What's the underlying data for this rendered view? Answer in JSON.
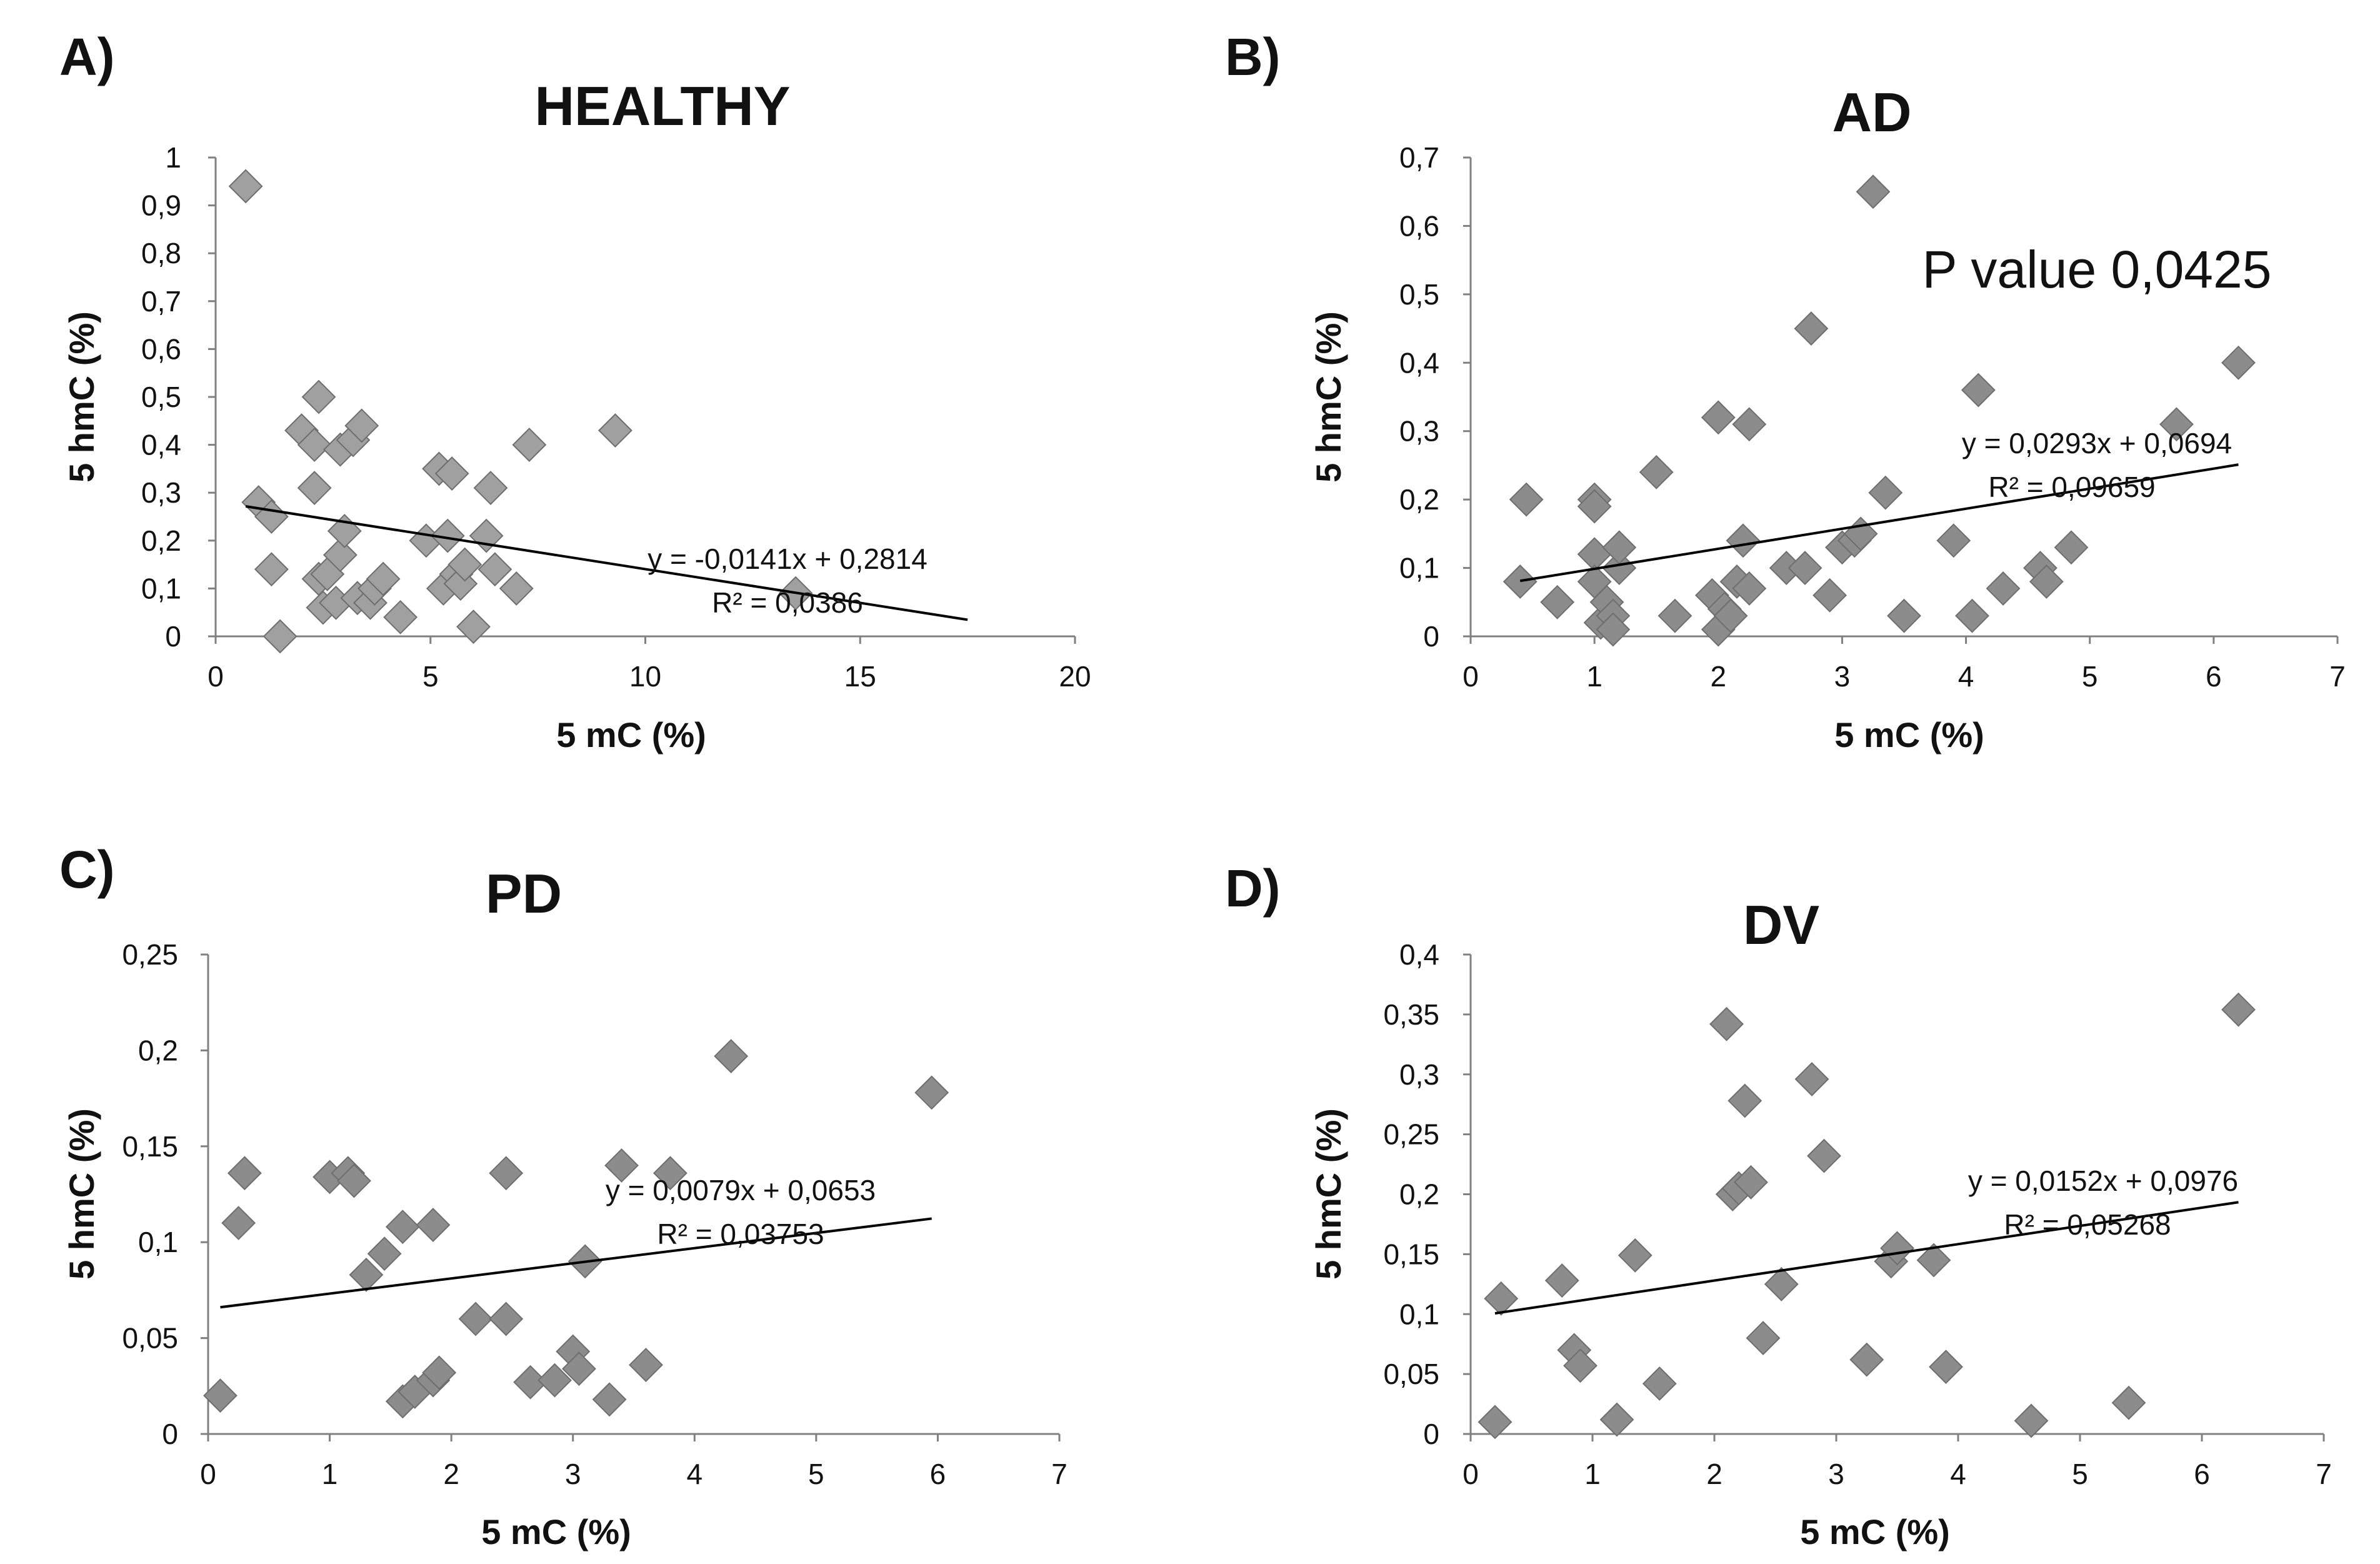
{
  "chart_data": [
    {
      "panel": "A)",
      "type": "scatter",
      "title": "HEALTHY",
      "xlabel": "5 mC (%)",
      "ylabel": "5 hmC (%)",
      "xlim": [
        0,
        20
      ],
      "ylim": [
        0,
        1
      ],
      "xticks": [
        0,
        5,
        10,
        15,
        20
      ],
      "xtick_labels": [
        "0",
        "5",
        "10",
        "15",
        "20"
      ],
      "yticks": [
        0,
        0.1,
        0.2,
        0.3,
        0.4,
        0.5,
        0.6,
        0.7,
        0.8,
        0.9,
        1
      ],
      "ytick_labels": [
        "0",
        "0,1",
        "0,2",
        "0,3",
        "0,4",
        "0,5",
        "0,6",
        "0,7",
        "0,8",
        "0,9",
        "1"
      ],
      "marker_color": "#a0a0a0",
      "points": [
        [
          0.7,
          0.94
        ],
        [
          1.0,
          0.28
        ],
        [
          1.3,
          0.25
        ],
        [
          1.3,
          0.14
        ],
        [
          1.5,
          0.0
        ],
        [
          2.0,
          0.43
        ],
        [
          2.3,
          0.4
        ],
        [
          2.4,
          0.5
        ],
        [
          2.3,
          0.31
        ],
        [
          2.4,
          0.12
        ],
        [
          2.5,
          0.06
        ],
        [
          2.6,
          0.13
        ],
        [
          2.8,
          0.07
        ],
        [
          2.9,
          0.17
        ],
        [
          2.9,
          0.39
        ],
        [
          3.0,
          0.22
        ],
        [
          3.2,
          0.41
        ],
        [
          3.4,
          0.44
        ],
        [
          3.3,
          0.08
        ],
        [
          3.6,
          0.07
        ],
        [
          3.7,
          0.1
        ],
        [
          3.9,
          0.12
        ],
        [
          4.3,
          0.04
        ],
        [
          4.9,
          0.2
        ],
        [
          5.2,
          0.35
        ],
        [
          5.3,
          0.1
        ],
        [
          5.4,
          0.21
        ],
        [
          5.5,
          0.34
        ],
        [
          5.6,
          0.13
        ],
        [
          5.7,
          0.11
        ],
        [
          5.8,
          0.15
        ],
        [
          6.0,
          0.02
        ],
        [
          6.3,
          0.21
        ],
        [
          6.4,
          0.31
        ],
        [
          6.5,
          0.14
        ],
        [
          7.0,
          0.1
        ],
        [
          7.3,
          0.4
        ],
        [
          9.3,
          0.43
        ],
        [
          13.5,
          0.09
        ]
      ],
      "trendline": {
        "slope": -0.0141,
        "intercept": 0.2814,
        "x_range": [
          0.7,
          17.5
        ]
      },
      "equation": "y = -0,0141x + 0,2814",
      "r_squared": "R² = 0,0386"
    },
    {
      "panel": "B)",
      "type": "scatter",
      "title": "AD",
      "xlabel": "5 mC (%)",
      "ylabel": "5 hmC (%)",
      "xlim": [
        0,
        7
      ],
      "ylim": [
        0,
        0.7
      ],
      "xticks": [
        0,
        1,
        2,
        3,
        4,
        5,
        6,
        7
      ],
      "xtick_labels": [
        "0",
        "1",
        "2",
        "3",
        "4",
        "5",
        "6",
        "7"
      ],
      "yticks": [
        0,
        0.1,
        0.2,
        0.3,
        0.4,
        0.5,
        0.6,
        0.7
      ],
      "ytick_labels": [
        "0",
        "0,1",
        "0,2",
        "0,3",
        "0,4",
        "0,5",
        "0,6",
        "0,7"
      ],
      "marker_color": "#8c8c8c",
      "annotation": "P value 0,0425",
      "points": [
        [
          0.4,
          0.08
        ],
        [
          0.45,
          0.2
        ],
        [
          0.7,
          0.05
        ],
        [
          1.0,
          0.2
        ],
        [
          1.0,
          0.19
        ],
        [
          1.0,
          0.12
        ],
        [
          1.0,
          0.08
        ],
        [
          1.05,
          0.02
        ],
        [
          1.1,
          0.05
        ],
        [
          1.15,
          0.03
        ],
        [
          1.15,
          0.01
        ],
        [
          1.2,
          0.1
        ],
        [
          1.2,
          0.13
        ],
        [
          1.5,
          0.24
        ],
        [
          1.65,
          0.03
        ],
        [
          1.95,
          0.06
        ],
        [
          2.0,
          0.32
        ],
        [
          2.0,
          0.01
        ],
        [
          2.05,
          0.04
        ],
        [
          2.1,
          0.03
        ],
        [
          2.15,
          0.08
        ],
        [
          2.2,
          0.14
        ],
        [
          2.25,
          0.31
        ],
        [
          2.25,
          0.07
        ],
        [
          2.55,
          0.1
        ],
        [
          2.7,
          0.1
        ],
        [
          2.75,
          0.45
        ],
        [
          2.9,
          0.06
        ],
        [
          3.0,
          0.13
        ],
        [
          3.1,
          0.14
        ],
        [
          3.15,
          0.15
        ],
        [
          3.25,
          0.65
        ],
        [
          3.35,
          0.21
        ],
        [
          3.5,
          0.03
        ],
        [
          3.9,
          0.14
        ],
        [
          4.05,
          0.03
        ],
        [
          4.1,
          0.36
        ],
        [
          4.3,
          0.07
        ],
        [
          4.6,
          0.1
        ],
        [
          4.65,
          0.08
        ],
        [
          4.85,
          0.13
        ],
        [
          5.7,
          0.31
        ],
        [
          6.2,
          0.4
        ]
      ],
      "trendline": {
        "slope": 0.0293,
        "intercept": 0.0694,
        "x_range": [
          0.4,
          6.2
        ]
      },
      "equation": "y = 0,0293x + 0,0694",
      "r_squared": "R² = 0,09659"
    },
    {
      "panel": "C)",
      "type": "scatter",
      "title": "PD",
      "xlabel": "5 mC (%)",
      "ylabel": "5 hmC (%)",
      "xlim": [
        0,
        7
      ],
      "ylim": [
        0,
        0.25
      ],
      "xticks": [
        0,
        1,
        2,
        3,
        4,
        5,
        6,
        7
      ],
      "xtick_labels": [
        "0",
        "1",
        "2",
        "3",
        "4",
        "5",
        "6",
        "7"
      ],
      "yticks": [
        0,
        0.05,
        0.1,
        0.15,
        0.2,
        0.25
      ],
      "ytick_labels": [
        "0",
        "0,05",
        "0,1",
        "0,15",
        "0,2",
        "0,25"
      ],
      "marker_color": "#8c8c8c",
      "points": [
        [
          0.1,
          0.02
        ],
        [
          0.25,
          0.11
        ],
        [
          0.3,
          0.136
        ],
        [
          1.0,
          0.134
        ],
        [
          1.15,
          0.136
        ],
        [
          1.2,
          0.132
        ],
        [
          1.3,
          0.083
        ],
        [
          1.45,
          0.094
        ],
        [
          1.6,
          0.108
        ],
        [
          1.6,
          0.017
        ],
        [
          1.7,
          0.022
        ],
        [
          1.85,
          0.028
        ],
        [
          1.85,
          0.109
        ],
        [
          1.9,
          0.032
        ],
        [
          2.2,
          0.06
        ],
        [
          2.45,
          0.136
        ],
        [
          2.45,
          0.06
        ],
        [
          2.65,
          0.027
        ],
        [
          2.85,
          0.028
        ],
        [
          3.0,
          0.043
        ],
        [
          3.05,
          0.034
        ],
        [
          3.1,
          0.09
        ],
        [
          3.3,
          0.018
        ],
        [
          3.4,
          0.14
        ],
        [
          3.6,
          0.036
        ],
        [
          3.8,
          0.136
        ],
        [
          4.3,
          0.197
        ],
        [
          5.95,
          0.178
        ]
      ],
      "trendline": {
        "slope": 0.0079,
        "intercept": 0.0653,
        "x_range": [
          0.1,
          5.95
        ]
      },
      "equation": "y = 0,0079x + 0,0653",
      "r_squared": "R² = 0,03753"
    },
    {
      "panel": "D)",
      "type": "scatter",
      "title": "DV",
      "xlabel": "5 mC (%)",
      "ylabel": "5 hmC (%)",
      "xlim": [
        0,
        7
      ],
      "ylim": [
        0,
        0.4
      ],
      "xticks": [
        0,
        1,
        2,
        3,
        4,
        5,
        6,
        7
      ],
      "xtick_labels": [
        "0",
        "1",
        "2",
        "3",
        "4",
        "5",
        "6",
        "7"
      ],
      "yticks": [
        0,
        0.05,
        0.1,
        0.15,
        0.2,
        0.25,
        0.3,
        0.35,
        0.4
      ],
      "ytick_labels": [
        "0",
        "0,05",
        "0,1",
        "0,15",
        "0,2",
        "0,25",
        "0,3",
        "0,35",
        "0,4"
      ],
      "marker_color": "#8c8c8c",
      "points": [
        [
          0.2,
          0.01
        ],
        [
          0.25,
          0.113
        ],
        [
          0.75,
          0.128
        ],
        [
          0.85,
          0.07
        ],
        [
          0.9,
          0.057
        ],
        [
          1.2,
          0.012
        ],
        [
          1.35,
          0.149
        ],
        [
          1.55,
          0.042
        ],
        [
          2.1,
          0.342
        ],
        [
          2.15,
          0.2
        ],
        [
          2.2,
          0.205
        ],
        [
          2.25,
          0.278
        ],
        [
          2.3,
          0.21
        ],
        [
          2.4,
          0.08
        ],
        [
          2.55,
          0.125
        ],
        [
          2.8,
          0.296
        ],
        [
          2.9,
          0.232
        ],
        [
          3.25,
          0.062
        ],
        [
          3.45,
          0.144
        ],
        [
          3.5,
          0.155
        ],
        [
          3.8,
          0.145
        ],
        [
          3.9,
          0.056
        ],
        [
          4.6,
          0.011
        ],
        [
          5.4,
          0.026
        ],
        [
          6.3,
          0.354
        ]
      ],
      "trendline": {
        "slope": 0.0152,
        "intercept": 0.0976,
        "x_range": [
          0.2,
          6.3
        ]
      },
      "equation": "y = 0,0152x + 0,0976",
      "r_squared": "R² = 0,05268"
    }
  ]
}
